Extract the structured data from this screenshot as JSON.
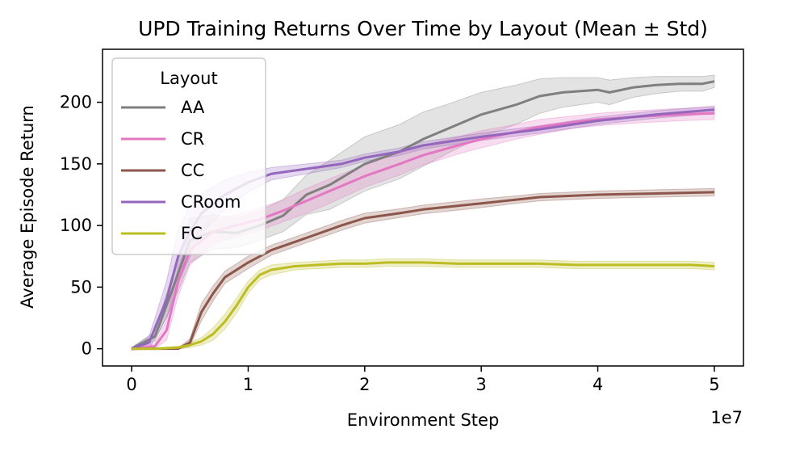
{
  "chart_data": {
    "type": "line",
    "title": "UPD Training Returns Over Time by Layout (Mean ± Std)",
    "xlabel": "Environment Step",
    "ylabel": "Average Episode Return",
    "x_multiplier_label": "1e7",
    "xlim": [
      -0.25,
      5.25
    ],
    "ylim": [
      -14,
      243
    ],
    "x_ticks": [
      0,
      1,
      2,
      3,
      4,
      5
    ],
    "x_tick_labels": [
      "0",
      "1",
      "2",
      "3",
      "4",
      "5"
    ],
    "y_ticks": [
      0,
      50,
      100,
      150,
      200
    ],
    "y_tick_labels": [
      "0",
      "50",
      "100",
      "150",
      "200"
    ],
    "grid": false,
    "legend": {
      "title": "Layout",
      "placement": "top-left"
    },
    "series": [
      {
        "name": "AA",
        "color": "#7f7f7f",
        "x": [
          0,
          0.2,
          0.35,
          0.5,
          0.7,
          0.9,
          1.1,
          1.3,
          1.5,
          1.7,
          2.0,
          2.3,
          2.5,
          2.7,
          3.0,
          3.3,
          3.5,
          3.7,
          4.0,
          4.1,
          4.3,
          4.5,
          4.7,
          4.9,
          5.0
        ],
        "y": [
          0,
          10,
          48,
          88,
          95,
          94,
          100,
          108,
          125,
          133,
          150,
          160,
          170,
          178,
          190,
          198,
          205,
          208,
          210,
          208,
          212,
          214,
          215,
          215,
          217
        ],
        "std": [
          1,
          4,
          12,
          18,
          14,
          12,
          12,
          13,
          16,
          20,
          22,
          22,
          22,
          20,
          18,
          16,
          14,
          12,
          10,
          10,
          8,
          7,
          6,
          6,
          5
        ]
      },
      {
        "name": "CR",
        "color": "#e377c2",
        "x": [
          0,
          0.2,
          0.3,
          0.4,
          0.5,
          0.7,
          0.9,
          1.1,
          1.3,
          1.5,
          1.7,
          2.0,
          2.3,
          2.5,
          2.8,
          3.0,
          3.3,
          3.5,
          3.8,
          4.0,
          4.3,
          4.5,
          4.7,
          5.0
        ],
        "y": [
          0,
          2,
          15,
          55,
          80,
          95,
          100,
          105,
          112,
          120,
          128,
          140,
          150,
          157,
          165,
          170,
          176,
          180,
          184,
          186,
          188,
          189,
          190,
          191
        ],
        "std": [
          1,
          2,
          8,
          12,
          12,
          10,
          9,
          9,
          9,
          10,
          10,
          9,
          9,
          8,
          7,
          7,
          6,
          6,
          5,
          5,
          5,
          5,
          5,
          5
        ]
      },
      {
        "name": "CC",
        "color": "#8c564b",
        "x": [
          0,
          0.2,
          0.4,
          0.5,
          0.6,
          0.7,
          0.8,
          1.0,
          1.2,
          1.5,
          1.8,
          2.0,
          2.3,
          2.5,
          2.8,
          3.0,
          3.3,
          3.5,
          4.0,
          4.5,
          5.0
        ],
        "y": [
          0,
          0,
          0,
          5,
          30,
          45,
          58,
          70,
          80,
          90,
          100,
          106,
          110,
          113,
          116,
          118,
          121,
          123,
          125,
          126,
          127
        ],
        "std": [
          0.5,
          0.5,
          0.5,
          3,
          7,
          6,
          5,
          5,
          4,
          4,
          4,
          4,
          3.5,
          3.5,
          3.5,
          3.5,
          3,
          3,
          3,
          3,
          3
        ]
      },
      {
        "name": "CRoom",
        "color": "#9467bd",
        "x": [
          0,
          0.15,
          0.3,
          0.4,
          0.5,
          0.6,
          0.8,
          1.0,
          1.2,
          1.5,
          1.8,
          2.0,
          2.3,
          2.5,
          3.0,
          3.5,
          4.0,
          4.5,
          5.0
        ],
        "y": [
          0,
          5,
          40,
          75,
          95,
          110,
          125,
          135,
          142,
          146,
          150,
          155,
          160,
          165,
          172,
          178,
          185,
          190,
          194
        ],
        "std": [
          1,
          5,
          15,
          22,
          20,
          16,
          12,
          8,
          5,
          4,
          3,
          3,
          3,
          3,
          3,
          3,
          3,
          3,
          3
        ]
      },
      {
        "name": "FC",
        "color": "#bcbd22",
        "x": [
          0,
          0.2,
          0.4,
          0.5,
          0.6,
          0.7,
          0.8,
          0.9,
          1.0,
          1.1,
          1.2,
          1.4,
          1.6,
          1.8,
          2.0,
          2.2,
          2.5,
          2.8,
          3.0,
          3.3,
          3.5,
          3.8,
          4.0,
          4.3,
          4.5,
          4.8,
          5.0
        ],
        "y": [
          0,
          0,
          1,
          3,
          6,
          12,
          22,
          35,
          50,
          60,
          64,
          67,
          68,
          69,
          69,
          70,
          70,
          69,
          69,
          69,
          69,
          68,
          68,
          68,
          68,
          68,
          67
        ],
        "std": [
          0.5,
          0.5,
          1,
          2,
          3,
          5,
          6,
          6,
          5,
          4,
          4,
          3,
          3,
          3,
          3,
          3,
          3,
          3,
          3,
          3,
          3,
          3,
          3,
          3,
          3,
          3,
          3
        ]
      }
    ]
  }
}
